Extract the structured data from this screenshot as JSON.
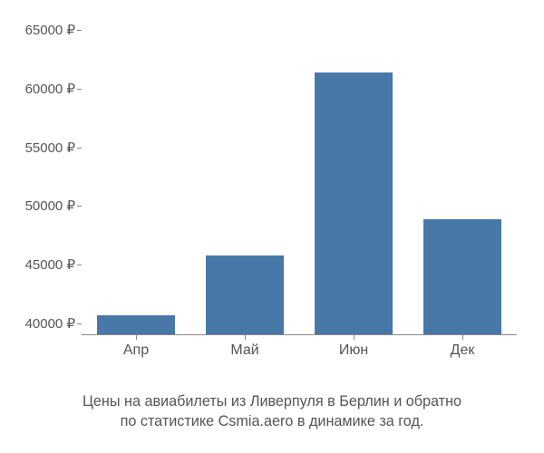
{
  "chart": {
    "type": "bar",
    "categories": [
      "Апр",
      "Май",
      "Июн",
      "Дек"
    ],
    "values": [
      40600,
      45700,
      61300,
      48800
    ],
    "bar_color": "#4878a8",
    "ylim": [
      39000,
      66000
    ],
    "ytick_labels": [
      "40000 ₽",
      "45000 ₽",
      "50000 ₽",
      "55000 ₽",
      "60000 ₽",
      "65000 ₽"
    ],
    "ytick_values": [
      40000,
      45000,
      50000,
      55000,
      60000,
      65000
    ],
    "background_color": "#ffffff",
    "axis_color": "#888888",
    "text_color": "#555555",
    "bar_width_ratio": 0.72,
    "label_fontsize": 15,
    "caption_fontsize": 16
  },
  "caption": {
    "line1": "Цены на авиабилеты из Ливерпуля в Берлин и обратно",
    "line2": "по статистике Csmia.aero в динамике за год."
  }
}
